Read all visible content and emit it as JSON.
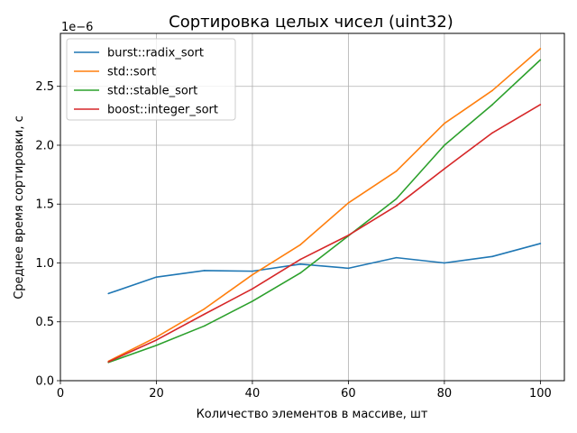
{
  "chart_data": {
    "type": "line",
    "title": "Сортировка целых чисел (uint32)",
    "xlabel": "Количество элементов в массиве, шт",
    "ylabel": "Среднее время сортировки, с",
    "y_offset_text": "1e−6",
    "xlim": [
      0,
      105
    ],
    "ylim": [
      0,
      2.95
    ],
    "xticks": [
      0,
      20,
      40,
      60,
      80,
      100
    ],
    "xtick_labels": [
      "0",
      "20",
      "40",
      "60",
      "80",
      "100"
    ],
    "yticks": [
      0,
      0.5,
      1.0,
      1.5,
      2.0,
      2.5
    ],
    "ytick_labels": [
      "0.0",
      "0.5",
      "1.0",
      "1.5",
      "2.0",
      "2.5"
    ],
    "grid": true,
    "legend_position": "top-left",
    "x": [
      10,
      20,
      30,
      40,
      50,
      60,
      70,
      80,
      90,
      100
    ],
    "series": [
      {
        "name": "burst::radix_sort",
        "color": "#1f77b4",
        "values": [
          0.74,
          0.88,
          0.935,
          0.93,
          0.99,
          0.955,
          1.045,
          1.0,
          1.055,
          1.165
        ]
      },
      {
        "name": "std::sort",
        "color": "#ff7f0e",
        "values": [
          0.165,
          0.37,
          0.61,
          0.9,
          1.155,
          1.51,
          1.78,
          2.185,
          2.465,
          2.82
        ]
      },
      {
        "name": "std::stable_sort",
        "color": "#2ca02c",
        "values": [
          0.155,
          0.3,
          0.465,
          0.675,
          0.915,
          1.23,
          1.545,
          2.0,
          2.345,
          2.725
        ]
      },
      {
        "name": "boost::integer_sort",
        "color": "#d62728",
        "values": [
          0.16,
          0.345,
          0.565,
          0.78,
          1.03,
          1.235,
          1.485,
          1.8,
          2.105,
          2.345
        ]
      }
    ]
  }
}
